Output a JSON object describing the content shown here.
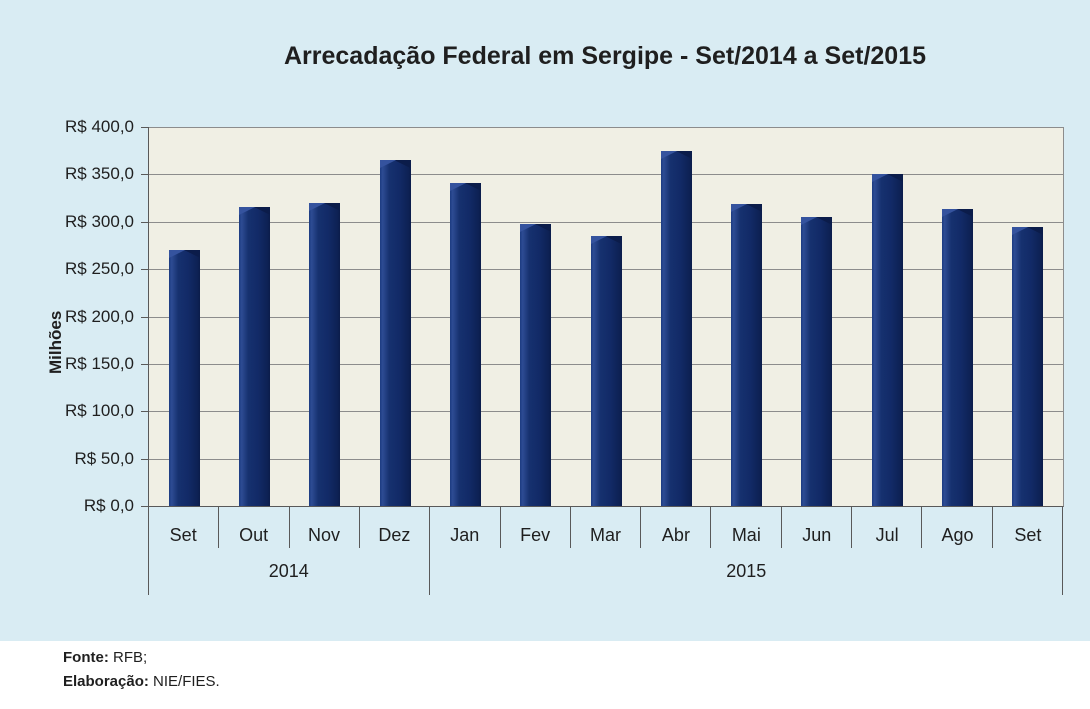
{
  "title": "Arrecadação Federal em Sergipe - Set/2014 a Set/2015",
  "chart_data": {
    "type": "bar",
    "title": "Arrecadação Federal em Sergipe - Set/2014 a Set/2015",
    "ylabel": "Milhões",
    "ylim": [
      0,
      400
    ],
    "ytick_step": 50,
    "ytick_labels": [
      "R$ 0,0",
      "R$ 50,0",
      "R$ 100,0",
      "R$ 150,0",
      "R$ 200,0",
      "R$ 250,0",
      "R$ 300,0",
      "R$ 350,0",
      "R$ 400,0"
    ],
    "categories": [
      "Set",
      "Out",
      "Nov",
      "Dez",
      "Jan",
      "Fev",
      "Mar",
      "Abr",
      "Mai",
      "Jun",
      "Jul",
      "Ago",
      "Set"
    ],
    "values": [
      270,
      316,
      320,
      365,
      341,
      298,
      285,
      375,
      319,
      305,
      350,
      313,
      295
    ],
    "groups": [
      {
        "label": "2014",
        "span": 4
      },
      {
        "label": "2015",
        "span": 9
      }
    ],
    "grid": true,
    "legend": "none",
    "colors": {
      "bar": "#122a67",
      "panel_background": "#d9ecf3",
      "plot_background": "#f0efe4",
      "gridline": "#8c8c8c",
      "axis_line": "#595959",
      "text": "#1f1f1f"
    }
  },
  "footer": {
    "source_label": "Fonte:",
    "source_value": " RFB;",
    "elaboration_label": "Elaboração:",
    "elaboration_value": " NIE/FIES."
  }
}
